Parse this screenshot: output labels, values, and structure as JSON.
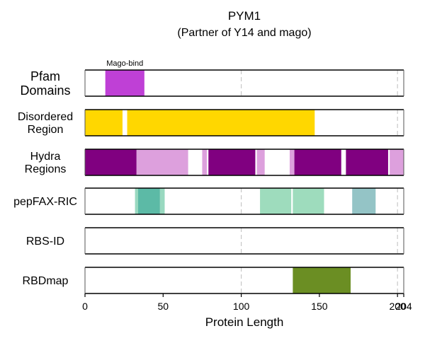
{
  "chart_data": {
    "type": "bar",
    "title": "PYM1",
    "subtitle": "(Partner of Y14 and mago)",
    "xlabel": "Protein Length",
    "xlim": [
      0,
      204
    ],
    "xticks": [
      0,
      50,
      100,
      150,
      200,
      204
    ],
    "xtick_labels": [
      "0",
      "50",
      "100",
      "150",
      "200",
      "204"
    ],
    "gridlines_x": [
      100,
      200
    ],
    "tracks": [
      {
        "label": "Pfam\nDomains",
        "segments": [
          {
            "start": 13,
            "end": 38,
            "color": "#bf40d6",
            "label": "Mago-bind"
          }
        ]
      },
      {
        "label": "Disordered\nRegion",
        "segments": [
          {
            "start": 0,
            "end": 24,
            "color": "#ffd700"
          },
          {
            "start": 27,
            "end": 147,
            "color": "#ffd700"
          }
        ]
      },
      {
        "label": "Hydra\nRegions",
        "segments": [
          {
            "start": 0,
            "end": 33,
            "color": "#800080"
          },
          {
            "start": 33,
            "end": 66,
            "color": "#dda0dd"
          },
          {
            "start": 75,
            "end": 78,
            "color": "#dda0dd"
          },
          {
            "start": 79,
            "end": 109,
            "color": "#800080"
          },
          {
            "start": 110,
            "end": 115,
            "color": "#dda0dd"
          },
          {
            "start": 131,
            "end": 134,
            "color": "#dda0dd"
          },
          {
            "start": 134,
            "end": 164,
            "color": "#800080"
          },
          {
            "start": 167,
            "end": 194,
            "color": "#800080"
          },
          {
            "start": 195,
            "end": 204,
            "color": "#dda0dd"
          }
        ]
      },
      {
        "label": "pepFAX-RIC",
        "segments": [
          {
            "start": 32,
            "end": 34,
            "color": "#99d9c0"
          },
          {
            "start": 34,
            "end": 48,
            "color": "#5cbaa6"
          },
          {
            "start": 48,
            "end": 51,
            "color": "#99d9c0"
          },
          {
            "start": 112,
            "end": 132,
            "color": "#9edcbd"
          },
          {
            "start": 133,
            "end": 153,
            "color": "#9edcbd"
          },
          {
            "start": 171,
            "end": 186,
            "color": "#94c4c6"
          }
        ]
      },
      {
        "label": "RBS-ID",
        "segments": []
      },
      {
        "label": "RBDmap",
        "segments": [
          {
            "start": 133,
            "end": 170,
            "color": "#6b8e23"
          }
        ]
      }
    ]
  }
}
